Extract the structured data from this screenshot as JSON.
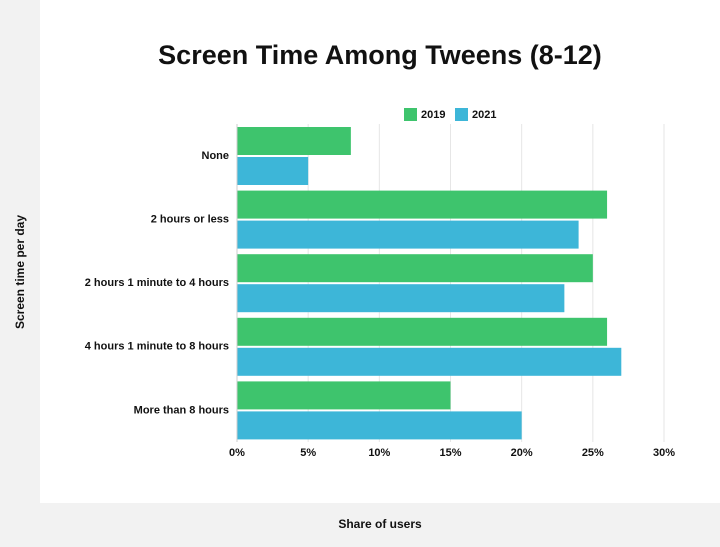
{
  "chart_data": {
    "type": "bar",
    "orientation": "horizontal",
    "title": "Screen Time Among Tweens (8-12)",
    "x_label": "Share of users",
    "y_label": "Screen time per day",
    "categories": [
      "None",
      "2 hours or less",
      "2 hours 1 minute to 4 hours",
      "4 hours 1 minute to 8 hours",
      "More than 8 hours"
    ],
    "series": [
      {
        "name": "2019",
        "color": "#3ec46d",
        "values": [
          8,
          26,
          25,
          26,
          15
        ]
      },
      {
        "name": "2021",
        "color": "#3db6d8",
        "values": [
          5,
          24,
          23,
          27,
          20
        ]
      }
    ],
    "xlim": [
      0,
      30
    ],
    "xticks": [
      {
        "value": 0,
        "label": "0%"
      },
      {
        "value": 5,
        "label": "5%"
      },
      {
        "value": 10,
        "label": "10%"
      },
      {
        "value": 15,
        "label": "15%"
      },
      {
        "value": 20,
        "label": "20%"
      },
      {
        "value": 25,
        "label": "25%"
      },
      {
        "value": 30,
        "label": "30%"
      }
    ],
    "grid": true
  }
}
